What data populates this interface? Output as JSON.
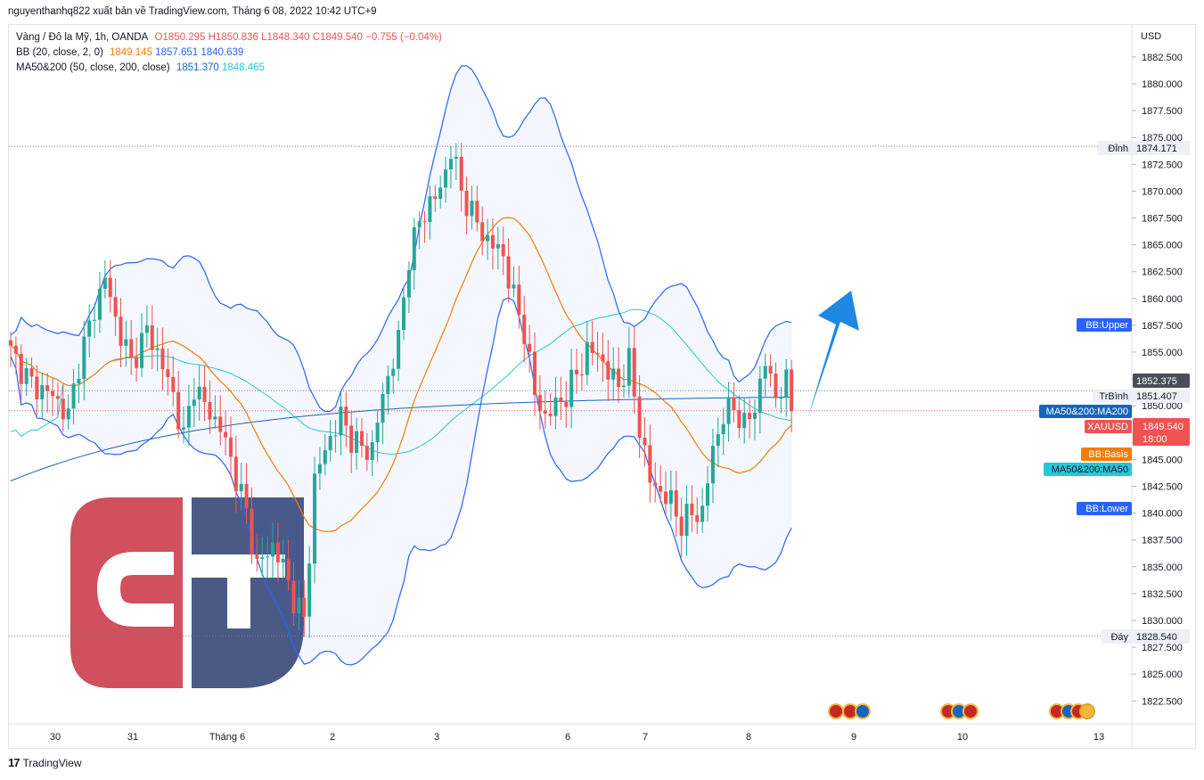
{
  "attribution": "nguyenthanhq822 xuất bản về TradingView.com, Tháng 6 08, 2022 10:42 UTC+9",
  "footer_brand": "TradingView",
  "legend": {
    "symbol": "Vàng / Đô la Mỹ, 1h, OANDA",
    "open": "O1850.295",
    "high": "H1850.836",
    "low": "L1848.340",
    "close": "C1849.540",
    "change": "−0.755 (−0.04%)",
    "bb_label": "BB (20, close, 2, 0)",
    "bb_basis": "1849.145",
    "bb_upper": "1857.651",
    "bb_lower": "1840.639",
    "ma_label": "MA50&200 (50, close, 200, close)",
    "ma50": "1851.370",
    "ma200": "1848.465"
  },
  "colors": {
    "up": "#26a69a",
    "down": "#ef5350",
    "bb_band": "#2962ff",
    "bb_basis": "#f57c00",
    "ma50": "#1565c0",
    "ma200": "#26c6da",
    "arrow": "#1e88e5",
    "logo_red": "#d0505e",
    "logo_navy": "#4a5a85"
  },
  "chart_data": {
    "type": "candlestick",
    "currency": "USD",
    "y_range": [
      1820.0,
      1885.0
    ],
    "y_ticks": [
      "1822.500",
      "1825.000",
      "1827.500",
      "1830.000",
      "1832.500",
      "1835.000",
      "1837.500",
      "1840.000",
      "1842.500",
      "1845.000",
      "1847.500",
      "1850.000",
      "1852.500",
      "1855.000",
      "1857.500",
      "1860.000",
      "1862.500",
      "1865.000",
      "1867.500",
      "1870.000",
      "1872.500",
      "1875.000",
      "1877.500",
      "1880.000",
      "1882.500"
    ],
    "x_labels": [
      "30",
      "31",
      "Tháng 6",
      "2",
      "3",
      "6",
      "7",
      "8",
      "9",
      "10",
      "13"
    ],
    "price_labels": [
      {
        "text": "Đỉnh",
        "value": "1874.171"
      },
      {
        "text": "TrBình",
        "value": "1851.407"
      },
      {
        "text": "Đáy",
        "value": "1828.540"
      },
      {
        "text": "BB:Upper"
      },
      {
        "text": "MA50&200:MA200"
      },
      {
        "text": "XAUUSD",
        "value": "1849.540",
        "time": "18:00"
      },
      {
        "text": "BB:Basis"
      },
      {
        "text": "MA50&200:MA50"
      },
      {
        "text": "BB:Lower"
      },
      {
        "text": "",
        "value": "1852.375"
      }
    ],
    "close_path": [
      [
        0,
        1855
      ],
      [
        4,
        1852
      ],
      [
        8,
        1851
      ],
      [
        11,
        1849
      ],
      [
        13,
        1854
      ],
      [
        16,
        1859
      ],
      [
        18,
        1862
      ],
      [
        20,
        1858
      ],
      [
        23,
        1854
      ],
      [
        26,
        1857
      ],
      [
        28,
        1855
      ],
      [
        31,
        1851
      ],
      [
        33,
        1847
      ],
      [
        35,
        1852
      ],
      [
        37,
        1850
      ],
      [
        40,
        1848
      ],
      [
        42,
        1845
      ],
      [
        45,
        1840
      ],
      [
        47,
        1835
      ],
      [
        50,
        1837
      ],
      [
        52,
        1835
      ],
      [
        54,
        1832
      ],
      [
        56,
        1830
      ],
      [
        58,
        1843
      ],
      [
        60,
        1846
      ],
      [
        63,
        1849
      ],
      [
        65,
        1847
      ],
      [
        67,
        1846
      ],
      [
        69,
        1846
      ],
      [
        71,
        1851
      ],
      [
        74,
        1856
      ],
      [
        76,
        1864
      ],
      [
        78,
        1867
      ],
      [
        80,
        1869
      ],
      [
        82,
        1870
      ],
      [
        84,
        1874
      ],
      [
        86,
        1870
      ],
      [
        88,
        1868
      ],
      [
        90,
        1866
      ],
      [
        92,
        1865
      ],
      [
        94,
        1864
      ],
      [
        96,
        1860
      ],
      [
        98,
        1857
      ],
      [
        100,
        1851
      ],
      [
        102,
        1849
      ],
      [
        104,
        1850
      ],
      [
        106,
        1851
      ],
      [
        108,
        1853
      ],
      [
        110,
        1855
      ],
      [
        112,
        1855
      ],
      [
        114,
        1853
      ],
      [
        116,
        1852
      ],
      [
        118,
        1854
      ],
      [
        120,
        1848
      ],
      [
        122,
        1843
      ],
      [
        124,
        1842
      ],
      [
        126,
        1841
      ],
      [
        128,
        1839
      ],
      [
        130,
        1840
      ],
      [
        132,
        1840
      ],
      [
        134,
        1846
      ],
      [
        136,
        1849
      ],
      [
        138,
        1850
      ],
      [
        140,
        1848
      ],
      [
        142,
        1850
      ],
      [
        144,
        1854
      ],
      [
        146,
        1851
      ],
      [
        148,
        1852
      ],
      [
        149,
        1849.5
      ]
    ]
  }
}
